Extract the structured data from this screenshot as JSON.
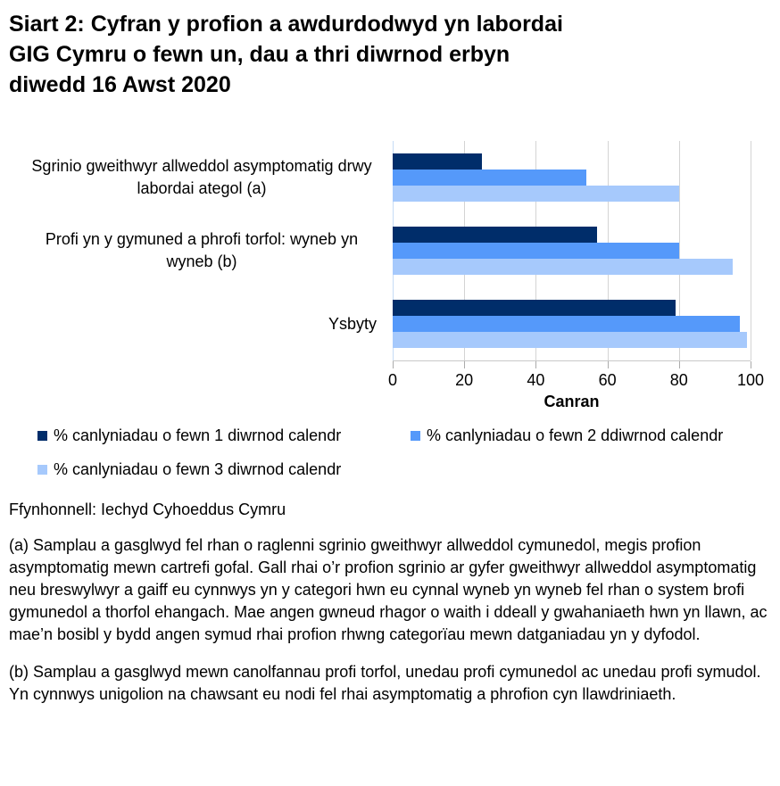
{
  "title_lines": [
    "Siart 2: Cyfran y profion a awdurdodwyd yn labordai",
    "GIG Cymru o fewn un, dau a thri diwrnod erbyn",
    "diwedd 16 Awst 2020"
  ],
  "chart_data": {
    "type": "bar",
    "orientation": "horizontal",
    "title": "Siart 2: Cyfran y profion a awdurdodwyd yn labordai GIG Cymru o fewn un, dau a thri diwrnod erbyn diwedd 16 Awst 2020",
    "categories": [
      "Sgrinio gweithwyr allweddol asymptomatig drwy labordai ategol (a)",
      "Profi yn y gymuned a phrofi torfol: wyneb yn wyneb (b)",
      "Ysbyty"
    ],
    "series": [
      {
        "name": "% canlyniadau o fewn 1 diwrnod calendr",
        "color": "#002D6A",
        "values": [
          25,
          57,
          79
        ]
      },
      {
        "name": "% canlyniadau o fewn 2 ddiwrnod calendr",
        "color": "#5599FA",
        "values": [
          54,
          80,
          97
        ]
      },
      {
        "name": "% canlyniadau o fewn 3 diwrnod calendr",
        "color": "#A6C9FC",
        "values": [
          80,
          95,
          99
        ]
      }
    ],
    "xlabel": "Canran",
    "ylabel": "",
    "xlim": [
      0,
      100
    ],
    "xticks": [
      0,
      20,
      40,
      60,
      80,
      100
    ],
    "grid": true,
    "legend_position": "bottom",
    "gridline_color": "#D4D4D4",
    "zero_line_color": "#C5DCF6"
  },
  "source": "Ffynhonnell: Iechyd Cyhoeddus Cymru",
  "footnotes": {
    "a": "(a) Samplau a gasglwyd fel rhan o raglenni sgrinio gweithwyr allweddol cymunedol, megis profion asymptomatig mewn cartrefi gofal. Gall rhai o’r profion sgrinio ar gyfer gweithwyr allweddol asymptomatig neu breswylwyr a gaiff eu cynnwys yn y categori hwn eu cynnal wyneb yn wyneb fel rhan o system brofi gymunedol a thorfol ehangach. Mae angen gwneud rhagor o waith i ddeall y gwahaniaeth hwn yn llawn, ac mae’n bosibl y bydd angen symud rhai profion rhwng categorïau mewn datganiadau yn y dyfodol.",
    "b": "(b) Samplau a gasglwyd mewn canolfannau profi torfol, unedau profi cymunedol ac unedau profi symudol. Yn cynnwys unigolion na chawsant eu nodi fel rhai asymptomatig a phrofion cyn llawdriniaeth."
  }
}
